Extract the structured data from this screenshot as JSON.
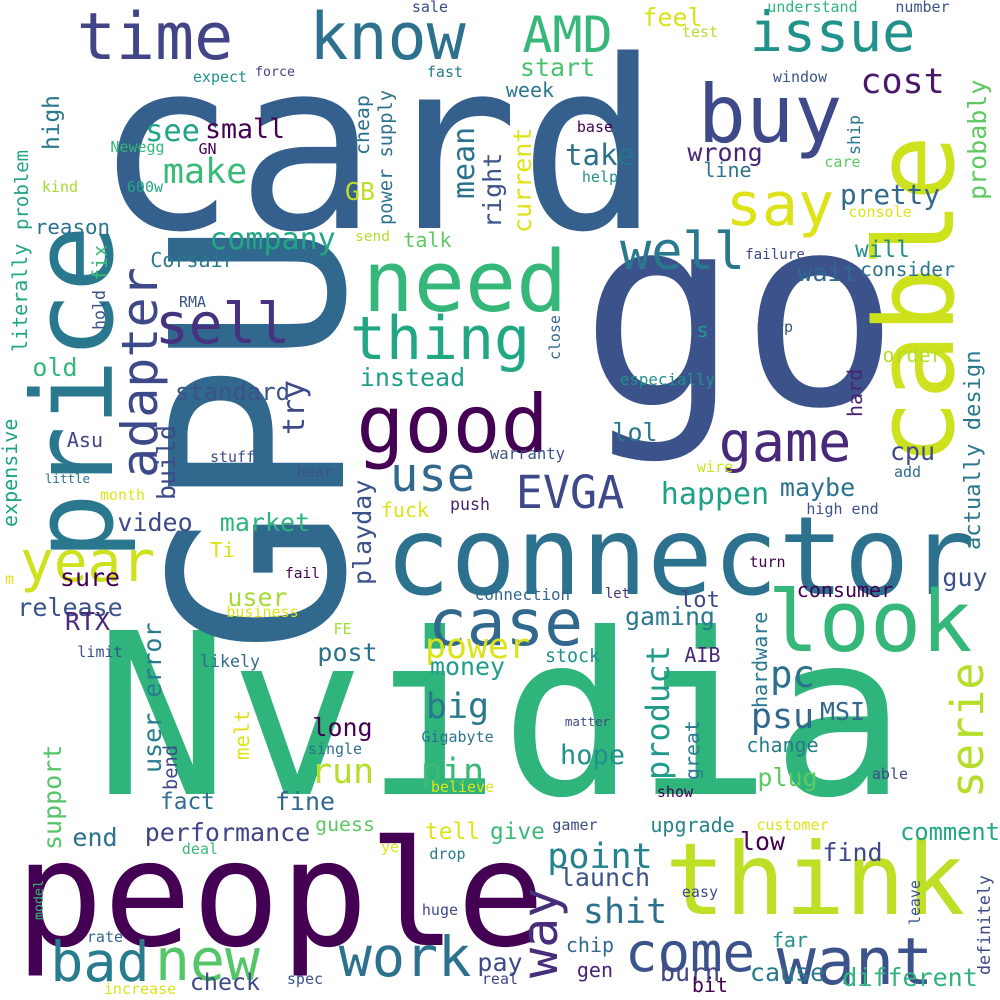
{
  "words": [
    {
      "text": "Nvidia",
      "color": "#2fb47c"
    },
    {
      "text": "go",
      "color": "#3b528b"
    },
    {
      "text": "card",
      "color": "#355f8d"
    },
    {
      "text": "GPU",
      "color": "#31688e"
    },
    {
      "text": "people",
      "color": "#440154"
    },
    {
      "text": "cable",
      "color": "#cde11d"
    },
    {
      "text": "connector",
      "color": "#2c728e"
    },
    {
      "text": "think",
      "color": "#bddf26"
    },
    {
      "text": "price",
      "color": "#2a788e"
    },
    {
      "text": "need",
      "color": "#35b779"
    },
    {
      "text": "good",
      "color": "#440154"
    },
    {
      "text": "buy",
      "color": "#3e4989"
    },
    {
      "text": "time",
      "color": "#414487"
    },
    {
      "text": "know",
      "color": "#2c728e"
    },
    {
      "text": "issue",
      "color": "#21918c"
    },
    {
      "text": "say",
      "color": "#dde318"
    },
    {
      "text": "look",
      "color": "#35b779"
    },
    {
      "text": "adapter",
      "color": "#3e4989"
    },
    {
      "text": "thing",
      "color": "#22a785"
    },
    {
      "text": "case",
      "color": "#31688e"
    },
    {
      "text": "year",
      "color": "#cde11d"
    },
    {
      "text": "want",
      "color": "#3b528b"
    },
    {
      "text": "come",
      "color": "#3b528b"
    },
    {
      "text": "work",
      "color": "#2c728e"
    },
    {
      "text": "EVGA",
      "color": "#3e4989"
    },
    {
      "text": "use",
      "color": "#31688e"
    },
    {
      "text": "game",
      "color": "#482878"
    },
    {
      "text": "bad",
      "color": "#287c8e"
    },
    {
      "text": "new",
      "color": "#54c568"
    },
    {
      "text": "well",
      "color": "#2a788e"
    },
    {
      "text": "sell",
      "color": "#46327e"
    },
    {
      "text": "way",
      "color": "#472d7b"
    },
    {
      "text": "serie",
      "color": "#b5de2b"
    },
    {
      "text": "AMD",
      "color": "#37b878"
    },
    {
      "text": "pc",
      "color": "#2c728e"
    },
    {
      "text": "run",
      "color": "#b5de2b"
    },
    {
      "text": "shit",
      "color": "#2e6e8e"
    },
    {
      "text": "point",
      "color": "#26828e"
    },
    {
      "text": "big",
      "color": "#2a788e"
    },
    {
      "text": "psu",
      "color": "#31688e"
    },
    {
      "text": "pin",
      "color": "#3aba76"
    },
    {
      "text": "power",
      "color": "#dde318"
    },
    {
      "text": "cost",
      "color": "#48186a"
    },
    {
      "text": "happen",
      "color": "#1fa187"
    },
    {
      "text": "product",
      "color": "#1e9c89"
    },
    {
      "text": "actually design",
      "color": "#2a788e"
    },
    {
      "text": "probably",
      "color": "#5ec962"
    },
    {
      "text": "company",
      "color": "#22a785"
    },
    {
      "text": "make",
      "color": "#3aba76"
    },
    {
      "text": "see",
      "color": "#20a386"
    },
    {
      "text": "small",
      "color": "#440154"
    },
    {
      "text": "problem",
      "color": "#20a386"
    },
    {
      "text": "mean",
      "color": "#2c728e"
    },
    {
      "text": "right",
      "color": "#3b528b"
    },
    {
      "text": "current",
      "color": "#dde318"
    },
    {
      "text": "start",
      "color": "#4ac16d"
    },
    {
      "text": "take",
      "color": "#2c728e"
    },
    {
      "text": "wrong",
      "color": "#482475"
    },
    {
      "text": "pretty",
      "color": "#31688e"
    },
    {
      "text": "feel",
      "color": "#d8e219"
    },
    {
      "text": "week",
      "color": "#2a788e"
    },
    {
      "text": "high",
      "color": "#2a788e"
    },
    {
      "text": "cheap",
      "color": "#2e6e8e"
    },
    {
      "text": "GB",
      "color": "#bddf26"
    },
    {
      "text": "talk",
      "color": "#5ec962"
    },
    {
      "text": "instead",
      "color": "#1f9e89"
    },
    {
      "text": "standard",
      "color": "#3b528b"
    },
    {
      "text": "try",
      "color": "#3e4989"
    },
    {
      "text": "old",
      "color": "#35b779"
    },
    {
      "text": "build",
      "color": "#3e4989"
    },
    {
      "text": "video",
      "color": "#3e4989"
    },
    {
      "text": "market",
      "color": "#2fb47c"
    },
    {
      "text": "sure",
      "color": "#440154"
    },
    {
      "text": "release",
      "color": "#3b528b"
    },
    {
      "text": "user",
      "color": "#a5db36"
    },
    {
      "text": "Ti",
      "color": "#dde318"
    },
    {
      "text": "fuck",
      "color": "#dde318"
    },
    {
      "text": "playday",
      "color": "#3b528b"
    },
    {
      "text": "push",
      "color": "#482475"
    },
    {
      "text": "maybe",
      "color": "#2c728e"
    },
    {
      "text": "cpu",
      "color": "#3e4989"
    },
    {
      "text": "will",
      "color": "#21918c"
    },
    {
      "text": "wait",
      "color": "#31688e"
    },
    {
      "text": "consider",
      "color": "#2c728e"
    },
    {
      "text": "order",
      "color": "#b5de2b"
    },
    {
      "text": "hard",
      "color": "#482475"
    },
    {
      "text": "lol",
      "color": "#2a788e"
    },
    {
      "text": "reason",
      "color": "#2c728e"
    },
    {
      "text": "literally",
      "color": "#22a785"
    },
    {
      "text": "expensive",
      "color": "#20a386"
    },
    {
      "text": "Corsair",
      "color": "#2a788e"
    },
    {
      "text": "Asu",
      "color": "#414487"
    },
    {
      "text": "RTX",
      "color": "#482878"
    },
    {
      "text": "user error",
      "color": "#287c8e"
    },
    {
      "text": "likely",
      "color": "#2e6e8e"
    },
    {
      "text": "post",
      "color": "#2c728e"
    },
    {
      "text": "money",
      "color": "#1f9e89"
    },
    {
      "text": "stock",
      "color": "#21918c"
    },
    {
      "text": "lot",
      "color": "#3e4989"
    },
    {
      "text": "let",
      "color": "#46327e"
    },
    {
      "text": "gaming",
      "color": "#2a788e"
    },
    {
      "text": "AIB",
      "color": "#482878"
    },
    {
      "text": "consumer",
      "color": "#440154"
    },
    {
      "text": "guy",
      "color": "#3b528b"
    },
    {
      "text": "long",
      "color": "#440154"
    },
    {
      "text": "melt",
      "color": "#dde318"
    },
    {
      "text": "bend",
      "color": "#3e4989"
    },
    {
      "text": "hope",
      "color": "#21918c"
    },
    {
      "text": "great",
      "color": "#2a788e"
    },
    {
      "text": "plug",
      "color": "#5ec962"
    },
    {
      "text": "MSI",
      "color": "#31688e"
    },
    {
      "text": "change",
      "color": "#287c8e"
    },
    {
      "text": "hardware",
      "color": "#2a788e"
    },
    {
      "text": "fact",
      "color": "#2e6e8e"
    },
    {
      "text": "fine",
      "color": "#31688e"
    },
    {
      "text": "support",
      "color": "#54c568"
    },
    {
      "text": "performance",
      "color": "#414487"
    },
    {
      "text": "guess",
      "color": "#5ec962"
    },
    {
      "text": "tell",
      "color": "#dde318"
    },
    {
      "text": "give",
      "color": "#3aba76"
    },
    {
      "text": "end",
      "color": "#2c728e"
    },
    {
      "text": "launch",
      "color": "#3b528b"
    },
    {
      "text": "upgrade",
      "color": "#26828e"
    },
    {
      "text": "low",
      "color": "#440154"
    },
    {
      "text": "find",
      "color": "#3e4989"
    },
    {
      "text": "comment",
      "color": "#22a785"
    },
    {
      "text": "far",
      "color": "#21918c"
    },
    {
      "text": "pay",
      "color": "#3e4989"
    },
    {
      "text": "cause",
      "color": "#2a788e"
    },
    {
      "text": "different",
      "color": "#2fb47c"
    },
    {
      "text": "burn",
      "color": "#414487"
    },
    {
      "text": "bit",
      "color": "#440154"
    },
    {
      "text": "chip",
      "color": "#31688e"
    },
    {
      "text": "gen",
      "color": "#482475"
    },
    {
      "text": "check",
      "color": "#3e4989"
    },
    {
      "text": "sale",
      "color": "#3e4989"
    },
    {
      "text": "understand",
      "color": "#2fb47c"
    },
    {
      "text": "number",
      "color": "#3b528b"
    },
    {
      "text": "test",
      "color": "#b5de2b"
    },
    {
      "text": "expect",
      "color": "#21918c"
    },
    {
      "text": "force",
      "color": "#414487"
    },
    {
      "text": "fast",
      "color": "#2a788e"
    },
    {
      "text": "window",
      "color": "#3b528b"
    },
    {
      "text": "power supply",
      "color": "#2c728e"
    },
    {
      "text": "base",
      "color": "#440154"
    },
    {
      "text": "help",
      "color": "#21918c"
    },
    {
      "text": "ship",
      "color": "#2a788e"
    },
    {
      "text": "care",
      "color": "#5ec962"
    },
    {
      "text": "line",
      "color": "#2c728e"
    },
    {
      "text": "console",
      "color": "#dde318"
    },
    {
      "text": "Newegg",
      "color": "#35b779"
    },
    {
      "text": "GN",
      "color": "#440154"
    },
    {
      "text": "kind",
      "color": "#a5db36"
    },
    {
      "text": "600w",
      "color": "#22a785"
    },
    {
      "text": "send",
      "color": "#b5de2b"
    },
    {
      "text": "failure",
      "color": "#3e4989"
    },
    {
      "text": "fix",
      "color": "#3aba76"
    },
    {
      "text": "hold",
      "color": "#3b528b"
    },
    {
      "text": "RMA",
      "color": "#3b528b"
    },
    {
      "text": "close",
      "color": "#31688e"
    },
    {
      "text": "msrp",
      "color": "#3b528b"
    },
    {
      "text": "s",
      "color": "#1f9e89"
    },
    {
      "text": "especially",
      "color": "#21918c"
    },
    {
      "text": "warranty",
      "color": "#3b528b"
    },
    {
      "text": "stuff",
      "color": "#3e4989"
    },
    {
      "text": "hear",
      "color": "#3b528b"
    },
    {
      "text": "little",
      "color": "#2c728e"
    },
    {
      "text": "month",
      "color": "#dde318"
    },
    {
      "text": "wire",
      "color": "#cde11d"
    },
    {
      "text": "add",
      "color": "#2e6e8e"
    },
    {
      "text": "high end",
      "color": "#3b528b"
    },
    {
      "text": "turn",
      "color": "#440154"
    },
    {
      "text": "m",
      "color": "#dde318"
    },
    {
      "text": "fail",
      "color": "#440154"
    },
    {
      "text": "connection",
      "color": "#31688e"
    },
    {
      "text": "business",
      "color": "#dde318"
    },
    {
      "text": "FE",
      "color": "#a5db36"
    },
    {
      "text": "limit",
      "color": "#3b528b"
    },
    {
      "text": "matter",
      "color": "#3e4989"
    },
    {
      "text": "Gigabyte",
      "color": "#2c728e"
    },
    {
      "text": "single",
      "color": "#2e6e8e"
    },
    {
      "text": "able",
      "color": "#3e4989"
    },
    {
      "text": "believe",
      "color": "#dde318"
    },
    {
      "text": "show",
      "color": "#440154"
    },
    {
      "text": "gamer",
      "color": "#3e4989"
    },
    {
      "text": "customer",
      "color": "#dde318"
    },
    {
      "text": "deal",
      "color": "#3aba76"
    },
    {
      "text": "ye",
      "color": "#dde318"
    },
    {
      "text": "drop",
      "color": "#2a788e"
    },
    {
      "text": "model",
      "color": "#3aba76"
    },
    {
      "text": "easy",
      "color": "#3e4989"
    },
    {
      "text": "leave",
      "color": "#3b528b"
    },
    {
      "text": "definitely",
      "color": "#3e4989"
    },
    {
      "text": "huge",
      "color": "#3e4989"
    },
    {
      "text": "rate",
      "color": "#31688e"
    },
    {
      "text": "increase",
      "color": "#dde318"
    },
    {
      "text": "spec",
      "color": "#3b528b"
    },
    {
      "text": "real",
      "color": "#3e4989"
    }
  ]
}
